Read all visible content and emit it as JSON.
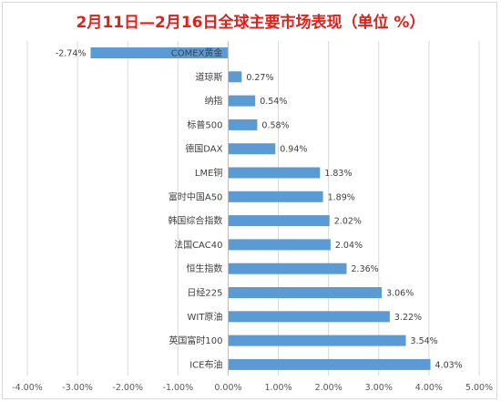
{
  "chart_data": {
    "type": "bar",
    "orientation": "horizontal",
    "title": "2月11日—2月16日全球主要市场表现（单位 %）",
    "categories": [
      "COMEX黄金",
      "道琼斯",
      "纳指",
      "标普500",
      "德国DAX",
      "LME铜",
      "富时中国A50",
      "韩国综合指数",
      "法国CAC40",
      "恒生指数",
      "日经225",
      "WIT原油",
      "英国富时100",
      "ICE布油"
    ],
    "values": [
      -2.74,
      0.27,
      0.54,
      0.58,
      0.94,
      1.83,
      1.89,
      2.02,
      2.04,
      2.36,
      3.06,
      3.22,
      3.54,
      4.03
    ],
    "value_labels": [
      "-2.74%",
      "0.27%",
      "0.54%",
      "0.58%",
      "0.94%",
      "1.83%",
      "1.89%",
      "2.02%",
      "2.04%",
      "2.36%",
      "3.06%",
      "3.22%",
      "3.54%",
      "4.03%"
    ],
    "xlim": [
      -4,
      5
    ],
    "x_ticks": [
      "-4.00%",
      "-3.00%",
      "-2.00%",
      "-1.00%",
      "0.00%",
      "1.00%",
      "2.00%",
      "3.00%",
      "4.00%",
      "5.00%"
    ],
    "xlabel": "",
    "ylabel": "",
    "grid": true,
    "legend": "none",
    "bar_color": "#5b9bd5",
    "title_color": "#e0201b"
  }
}
